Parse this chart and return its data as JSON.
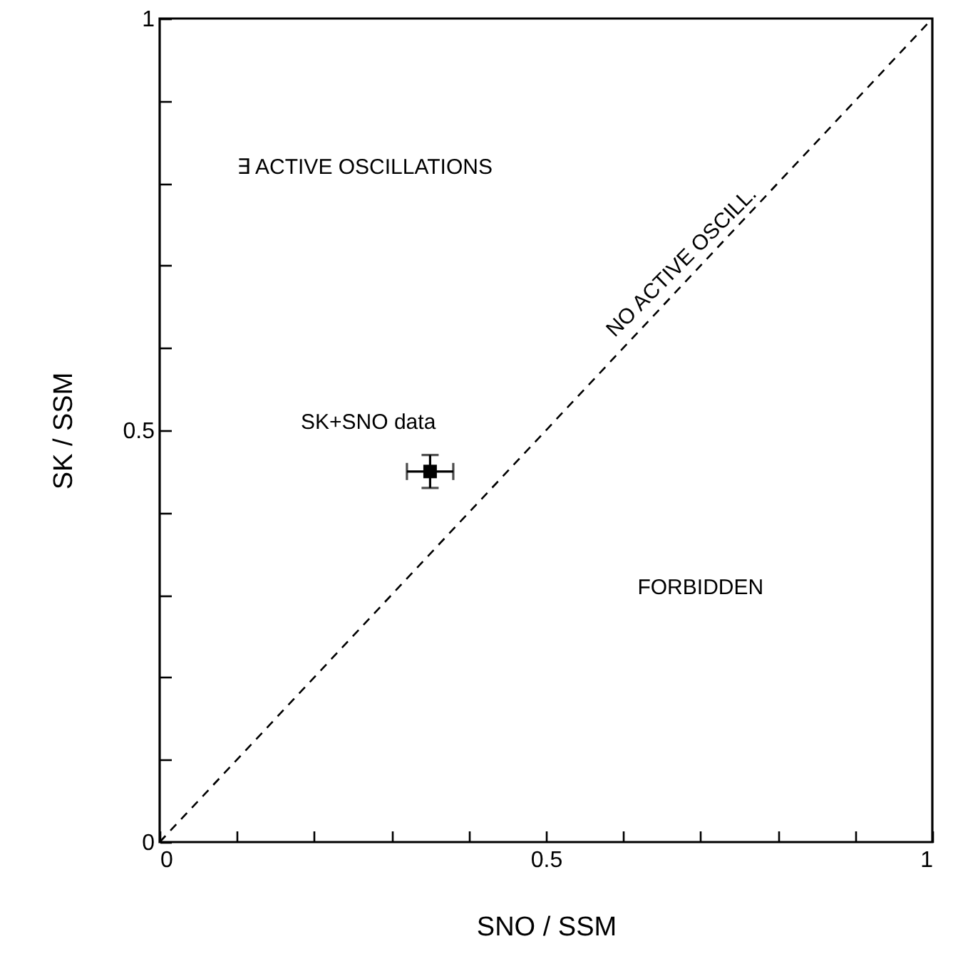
{
  "chart_data": {
    "type": "scatter",
    "xlabel": "SNO / SSM",
    "ylabel": "SK / SSM",
    "xlim": [
      0,
      1
    ],
    "ylim": [
      0,
      1
    ],
    "xticks": [
      0,
      {
        "value": 0.1,
        "label": null
      },
      {
        "value": 0.2,
        "label": null
      },
      {
        "value": 0.3,
        "label": null
      },
      {
        "value": 0.4,
        "label": null
      },
      0.5,
      {
        "value": 0.6,
        "label": null
      },
      {
        "value": 0.7,
        "label": null
      },
      {
        "value": 0.8,
        "label": null
      },
      {
        "value": 0.9,
        "label": null
      },
      1
    ],
    "yticks": [
      0,
      {
        "value": 0.1,
        "label": null
      },
      {
        "value": 0.2,
        "label": null
      },
      {
        "value": 0.3,
        "label": null
      },
      {
        "value": 0.4,
        "label": null
      },
      0.5,
      {
        "value": 0.6,
        "label": null
      },
      {
        "value": 0.7,
        "label": null
      },
      {
        "value": 0.8,
        "label": null
      },
      {
        "value": 0.9,
        "label": null
      },
      1
    ],
    "series": [
      {
        "type": "line",
        "x": [
          0,
          1
        ],
        "values": [
          0,
          1
        ],
        "color": "#000000",
        "line_style": "dashed",
        "marker": "none"
      },
      {
        "x": [
          0.35
        ],
        "values": [
          0.45
        ],
        "errors": [
          0.02
        ],
        "xerrors": [
          0.03
        ],
        "color": "#000000",
        "marker": "square"
      }
    ],
    "annotations": [
      "∃ ACTIVE OSCILLATIONS",
      "NO ACTIVE OSCILL.",
      "SK+SNO data",
      "FORBIDDEN"
    ],
    "grid": false
  }
}
